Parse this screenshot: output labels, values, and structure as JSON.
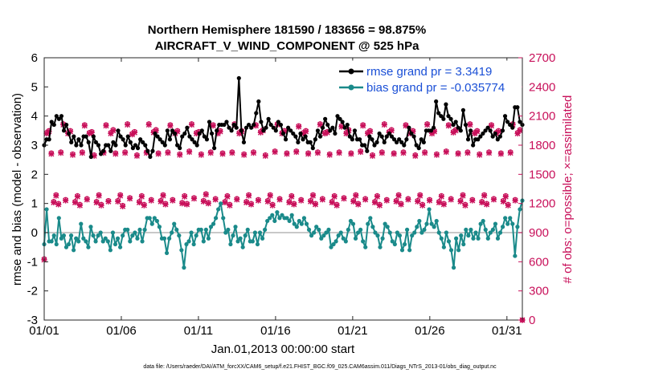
{
  "chart_data": {
    "type": "line",
    "title_line1": "Northern Hemisphere 181590 / 183656 = 98.875%",
    "title_line2": "AIRCRAFT_V_WIND_COMPONENT @ 525 hPa",
    "xlabel": "Jan.01,2013 00:00:00 start",
    "ylabel_left": "rmse and bias (model - observation)",
    "ylabel_right": "# of obs: o=possible; ×=assimilated",
    "ylim_left": [
      -3,
      6
    ],
    "ylim_right": [
      0,
      2700
    ],
    "x_range": [
      0,
      31
    ],
    "x_ticks": [
      0,
      5,
      10,
      15,
      20,
      25,
      30
    ],
    "x_tick_labels": [
      "01/01",
      "01/06",
      "01/11",
      "01/16",
      "01/21",
      "01/26",
      "01/31"
    ],
    "y_ticks_left": [
      -3,
      -2,
      -1,
      0,
      1,
      2,
      3,
      4,
      5,
      6
    ],
    "y_tick_labels_left": [
      "-3",
      "-2",
      "-1",
      "0",
      "1",
      "2",
      "3",
      "4",
      "5",
      "6"
    ],
    "y_ticks_right": [
      0,
      300,
      600,
      900,
      1200,
      1500,
      1800,
      2100,
      2400,
      2700
    ],
    "y_tick_labels_right": [
      "0",
      "300",
      "600",
      "900",
      "1200",
      "1500",
      "1800",
      "2100",
      "2400",
      "2700"
    ],
    "footnote": "data file: /Users/raeder/DAI/ATM_forcXX/CAM6_setup/f.e21.FHIST_BGC.f09_025.CAM6assim.011/Diags_NTrS_2013-01/obs_diag_output.nc",
    "colors": {
      "rmse": "#000000",
      "bias": "#1a8a8a",
      "obs": "#c8105a",
      "legend_text": "#1a4fd6",
      "zero_line": "#b5b5b5"
    },
    "series": [
      {
        "name": "rmse grand pr = 3.3419",
        "values": [
          3.0,
          3.2,
          3.2,
          3.8,
          3.7,
          4.0,
          3.9,
          4.0,
          3.5,
          3.7,
          3.4,
          3.1,
          3.3,
          3.0,
          3.2,
          3.0,
          3.3,
          3.3,
          3.1,
          2.6,
          3.3,
          3.1,
          3.0,
          2.7,
          2.8,
          3.0,
          3.0,
          2.8,
          3.1,
          3.0,
          3.5,
          3.3,
          3.2,
          3.0,
          3.3,
          3.1,
          2.9,
          3.0,
          2.9,
          3.2,
          3.1,
          3.0,
          2.8,
          2.6,
          2.8,
          3.4,
          3.3,
          3.2,
          3.1,
          3.0,
          3.5,
          3.2,
          3.5,
          3.4,
          3.0,
          2.9,
          3.3,
          3.4,
          3.6,
          3.3,
          3.2,
          3.1,
          3.0,
          3.4,
          3.5,
          3.3,
          3.2,
          3.8,
          3.4,
          2.9,
          3.5,
          3.7,
          3.7,
          3.7,
          3.8,
          3.6,
          3.5,
          3.7,
          3.6,
          5.3,
          3.5,
          3.1,
          3.6,
          3.7,
          3.6,
          3.7,
          4.1,
          4.5,
          3.8,
          3.5,
          3.6,
          3.9,
          3.7,
          3.6,
          3.5,
          3.8,
          3.7,
          3.4,
          3.2,
          3.6,
          3.5,
          3.4,
          3.3,
          3.1,
          3.4,
          3.2,
          3.3,
          3.1,
          3.1,
          2.9,
          3.2,
          3.5,
          3.3,
          3.6,
          3.9,
          3.7,
          3.5,
          3.6,
          3.4,
          4.0,
          3.9,
          3.8,
          3.6,
          3.7,
          3.3,
          3.2,
          3.5,
          3.2,
          3.2,
          3.0,
          3.0,
          2.8,
          3.3,
          3.2,
          3.0,
          3.1,
          3.4,
          3.3,
          3.1,
          3.3,
          3.4,
          3.3,
          3.2,
          3.1,
          3.2,
          3.1,
          3.0,
          3.2,
          3.6,
          3.4,
          3.3,
          3.0,
          2.9,
          3.2,
          3.1,
          3.5,
          3.5,
          3.5,
          3.6,
          4.5,
          4.1,
          4.0,
          3.9,
          4.4,
          4.0,
          3.9,
          3.7,
          3.8,
          3.6,
          3.5,
          4.2,
          3.7,
          3.2,
          3.5,
          3.0,
          3.2,
          3.2,
          3.3,
          3.4,
          3.5,
          3.6,
          3.5,
          3.3,
          3.4,
          3.2,
          3.3,
          3.5,
          4.0,
          3.8,
          3.7,
          3.6,
          4.3,
          4.3,
          3.8,
          3.7
        ]
      },
      {
        "name": "bias grand pr = -0.035774",
        "values": [
          -0.4,
          0.8,
          -0.3,
          -0.3,
          -0.1,
          -0.4,
          0.5,
          -0.2,
          -0.1,
          -0.5,
          -0.4,
          -0.1,
          -0.6,
          -0.2,
          -0.3,
          0.3,
          -0.2,
          -0.3,
          -0.5,
          0.2,
          -0.1,
          -0.3,
          -0.1,
          0.0,
          -0.3,
          -0.2,
          -0.3,
          -0.6,
          0.0,
          -0.4,
          -0.2,
          -0.5,
          -0.1,
          0.1,
          0.1,
          -0.3,
          -0.1,
          0.0,
          -0.2,
          0.1,
          -0.3,
          0.1,
          0.5,
          0.5,
          0.3,
          0.5,
          0.4,
          0.2,
          -0.2,
          -0.2,
          -0.7,
          -0.2,
          0.0,
          0.3,
          0.1,
          -0.1,
          -0.6,
          -1.2,
          -0.4,
          -0.3,
          0.0,
          -0.4,
          -0.1,
          0.1,
          0.1,
          -0.3,
          0.1,
          -0.2,
          0.2,
          0.3,
          0.5,
          0.8,
          1.0,
          0.5,
          0.0,
          0.1,
          -0.4,
          -0.1,
          0.2,
          -0.3,
          -0.2,
          -0.5,
          -0.1,
          0.1,
          -0.3,
          -0.3,
          0.0,
          -0.4,
          0.0,
          -0.2,
          0.1,
          0.4,
          0.5,
          0.6,
          0.4,
          0.7,
          0.5,
          0.6,
          0.5,
          0.5,
          0.4,
          0.6,
          0.3,
          0.2,
          0.4,
          0.3,
          0.5,
          0.3,
          0.1,
          -0.1,
          0.0,
          0.2,
          0.1,
          -0.2,
          -0.1,
          0.0,
          0.1,
          -0.5,
          -0.4,
          -0.3,
          -0.1,
          0.0,
          -0.2,
          -0.3,
          0.1,
          0.4,
          0.3,
          -0.2,
          0.0,
          0.1,
          -0.3,
          -0.5,
          0.3,
          0.5,
          0.2,
          0.0,
          -0.1,
          -0.5,
          -0.2,
          0.3,
          0.2,
          0.0,
          -0.3,
          -0.4,
          0.0,
          -0.1,
          -0.6,
          -0.4,
          0.1,
          -0.6,
          -0.1,
          0.0,
          0.2,
          0.4,
          0.0,
          0.1,
          0.3,
          0.8,
          0.3,
          0.2,
          0.4,
          0.0,
          -0.2,
          -0.5,
          0.0,
          -0.3,
          -0.6,
          -1.2,
          -0.2,
          -0.6,
          -0.1,
          -0.4,
          0.1,
          -0.1,
          0.1,
          -0.2,
          0.0,
          -0.2,
          0.3,
          0.4,
          0.1,
          -0.2,
          0.0,
          0.1,
          0.3,
          -0.2,
          0.0,
          0.2,
          0.5,
          0.3,
          0.5,
          0.3,
          -0.8,
          0.2,
          0.8,
          1.1
        ]
      },
      {
        "name": "# possible (o)",
        "values": [
          630,
          1930,
          1950,
          1720,
          1220,
          1290,
          1200,
          1730,
          2020,
          1240,
          1930,
          1950,
          1710,
          1220,
          1280,
          1190,
          1730,
          2010,
          1250,
          1930,
          1940,
          1700,
          1220,
          1290,
          1190,
          1730,
          2010,
          1230,
          1930,
          1960,
          1720,
          1230,
          1290,
          1180,
          1730,
          2020,
          1260,
          1920,
          1940,
          1700,
          1220,
          1280,
          1190,
          1730,
          2020,
          1240,
          1940,
          1960,
          1720,
          1230,
          1290,
          1200,
          1730,
          2010,
          1240,
          1930,
          1950,
          1710,
          1210,
          1280,
          1200,
          1740,
          2020,
          1260,
          1930,
          1940,
          1710,
          1230,
          1300,
          1210,
          1730,
          2010,
          1250,
          1930,
          1950,
          1720,
          1220,
          1280,
          1190,
          1730,
          2020,
          1250,
          1930,
          1950,
          1710,
          1220,
          1290,
          1200,
          1730,
          2010,
          1240,
          1940,
          1960,
          1700,
          1230,
          1290,
          1190,
          1740,
          2020,
          1250,
          1930,
          1950,
          1720,
          1220,
          1280,
          1200,
          1740,
          2000,
          1240,
          1930,
          1950,
          1720,
          1230,
          1290,
          1200,
          1730,
          2020,
          1250,
          1930,
          1940,
          1710,
          1220,
          1280,
          1190,
          1730,
          2000,
          1260,
          1930,
          1960,
          1720,
          1230,
          1290,
          1200,
          1740,
          2010,
          1250,
          1930,
          1950,
          1700,
          1220,
          1280,
          1190,
          1730,
          2020,
          1240,
          1940,
          1960,
          1720,
          1230,
          1290,
          1200,
          1730,
          2010,
          1250,
          1930,
          1950,
          1700,
          1230,
          1290,
          1190,
          1730,
          2020,
          1240,
          1930,
          1950,
          1710,
          1220,
          1280,
          1200,
          1740,
          2010,
          1250,
          1940,
          1960,
          1720,
          1230,
          1290,
          1190,
          1730,
          2020,
          1240,
          1930,
          1950,
          1710,
          1220,
          1290,
          1200,
          1730,
          2010,
          1250,
          1930,
          1950,
          1720,
          1230,
          1280,
          1190,
          1730,
          2020,
          1240,
          1930,
          1960,
          0
        ]
      },
      {
        "name": "# assimilated (×)",
        "values": [
          620,
          1920,
          1940,
          1710,
          1210,
          1280,
          1190,
          1720,
          2010,
          1230,
          1920,
          1940,
          1700,
          1210,
          1270,
          1180,
          1720,
          2000,
          1240,
          1920,
          1930,
          1690,
          1210,
          1280,
          1180,
          1720,
          2000,
          1220,
          1920,
          1950,
          1710,
          1220,
          1280,
          1170,
          1720,
          2010,
          1250,
          1910,
          1930,
          1690,
          1210,
          1270,
          1180,
          1720,
          2010,
          1230,
          1930,
          1950,
          1710,
          1220,
          1280,
          1190,
          1720,
          2000,
          1230,
          1920,
          1940,
          1700,
          1200,
          1270,
          1190,
          1730,
          2010,
          1250,
          1920,
          1930,
          1700,
          1220,
          1290,
          1200,
          1720,
          2000,
          1240,
          1920,
          1940,
          1710,
          1210,
          1270,
          1180,
          1720,
          2010,
          1240,
          1920,
          1940,
          1700,
          1210,
          1280,
          1190,
          1720,
          2000,
          1230,
          1930,
          1950,
          1690,
          1220,
          1280,
          1180,
          1730,
          2010,
          1240,
          1920,
          1940,
          1710,
          1210,
          1270,
          1190,
          1730,
          1990,
          1230,
          1920,
          1940,
          1710,
          1220,
          1280,
          1190,
          1720,
          2010,
          1240,
          1920,
          1930,
          1700,
          1210,
          1270,
          1180,
          1720,
          1990,
          1250,
          1920,
          1950,
          1710,
          1220,
          1280,
          1190,
          1730,
          2000,
          1240,
          1920,
          1940,
          1690,
          1210,
          1270,
          1180,
          1720,
          2010,
          1230,
          1930,
          1950,
          1710,
          1220,
          1280,
          1190,
          1720,
          2000,
          1240,
          1920,
          1940,
          1690,
          1220,
          1280,
          1180,
          1720,
          2010,
          1230,
          1920,
          1940,
          1700,
          1210,
          1270,
          1190,
          1730,
          2000,
          1240,
          1930,
          1950,
          1710,
          1220,
          1280,
          1180,
          1720,
          2010,
          1230,
          1920,
          1940,
          1700,
          1210,
          1280,
          1190,
          1720,
          2000,
          1240,
          1920,
          1940,
          1710,
          1220,
          1270,
          1180,
          1720,
          2010,
          1230,
          1920,
          1950,
          0
        ]
      }
    ],
    "legend": {
      "placement": "top-right",
      "entries": [
        "rmse grand pr = 3.3419",
        "bias grand pr = -0.035774"
      ]
    }
  }
}
